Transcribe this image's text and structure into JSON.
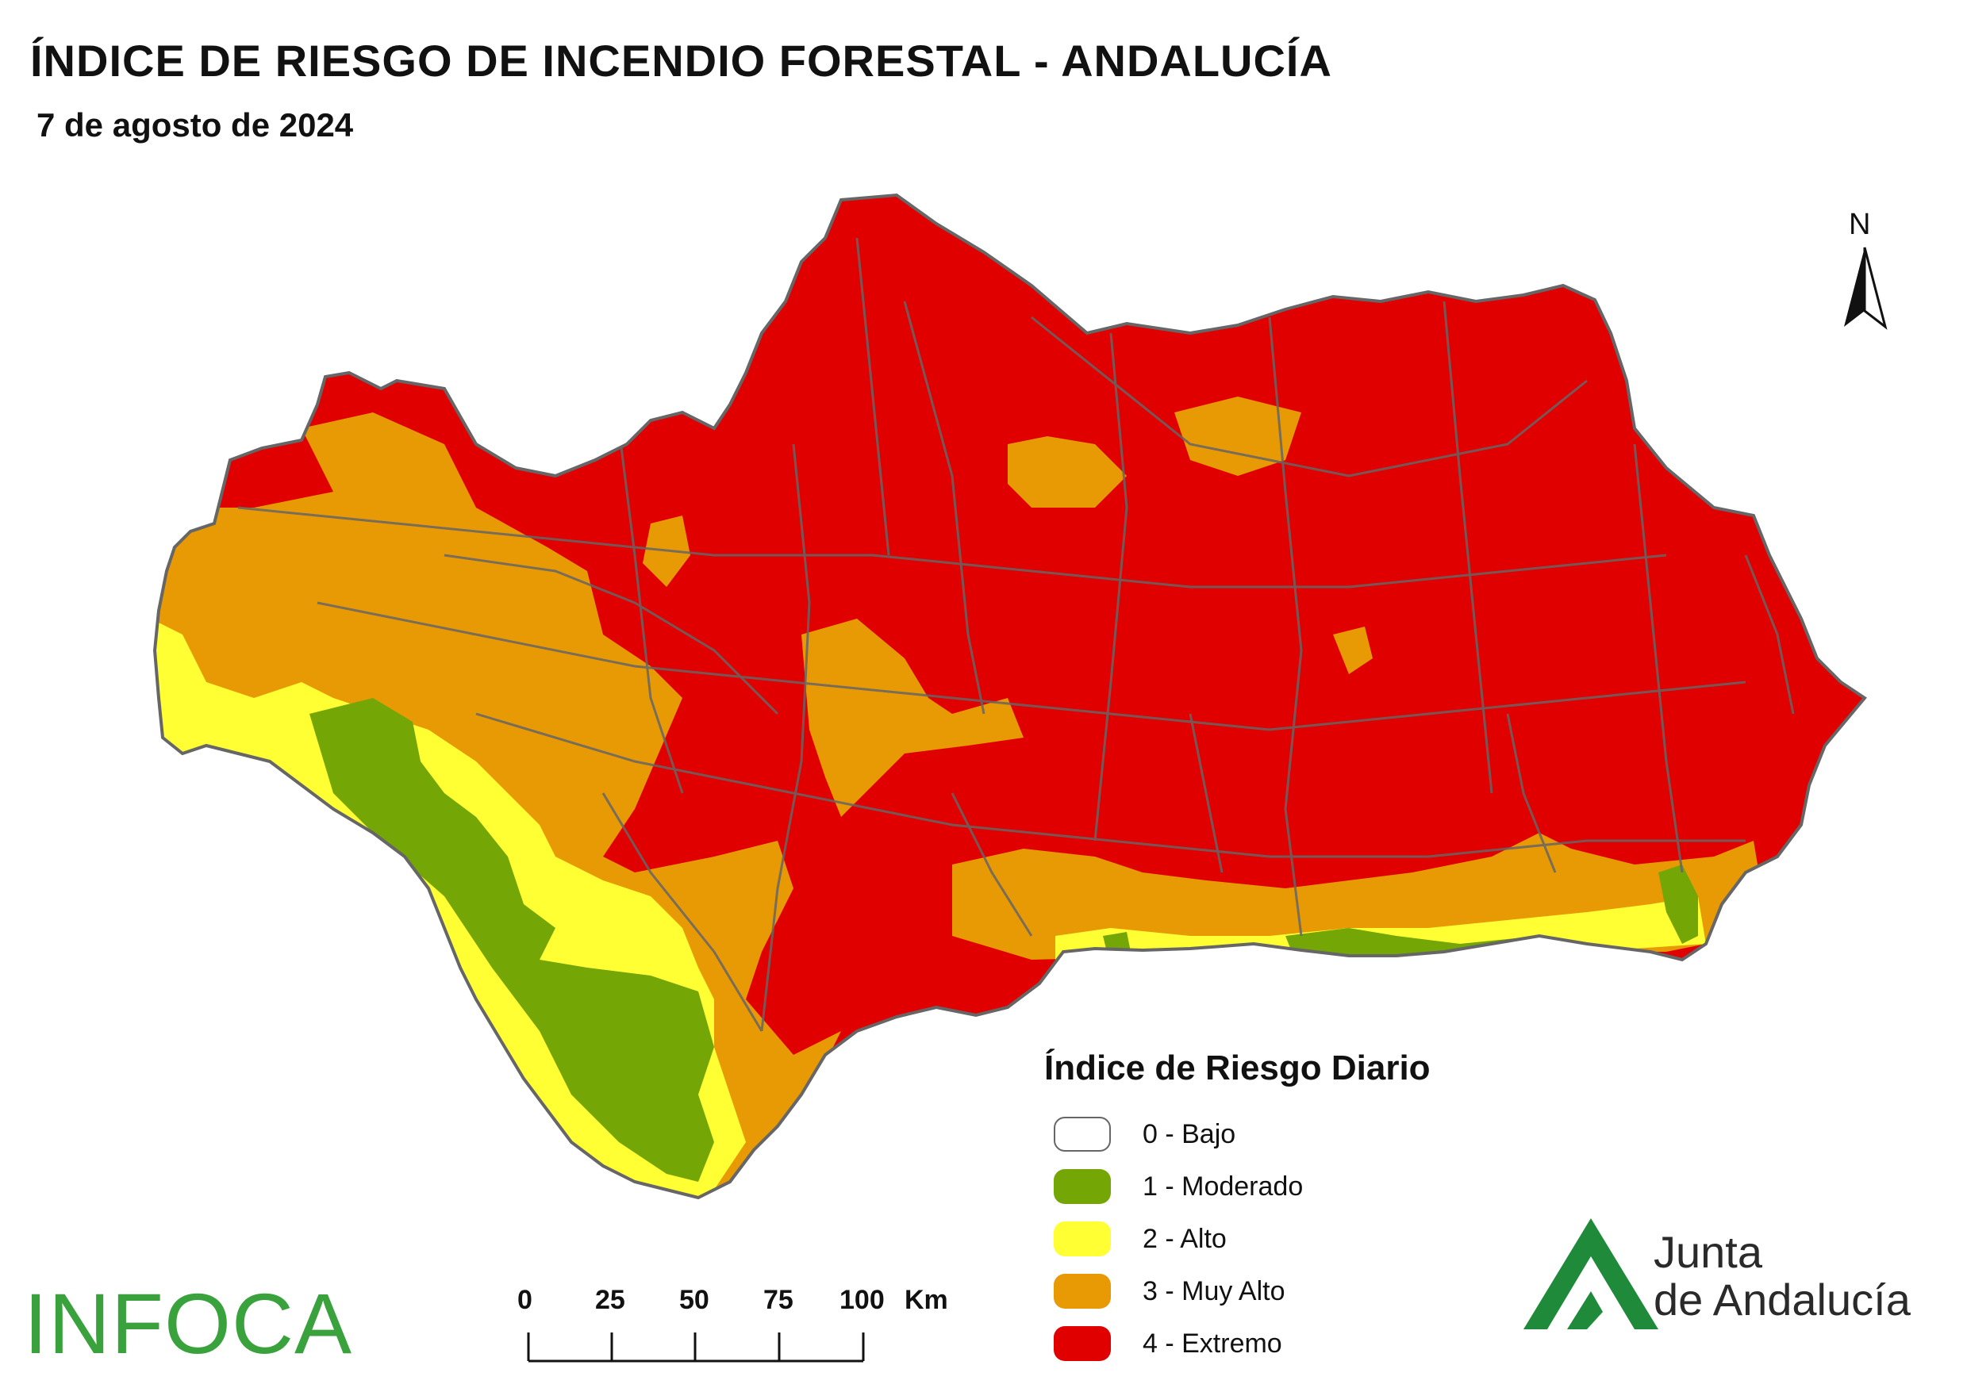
{
  "title": "ÍNDICE DE RIESGO DE INCENDIO FORESTAL - ANDALUCÍA",
  "subtitle": "7 de agosto de 2024",
  "north_label": "N",
  "legend": {
    "title": "Índice de Riesgo Diario",
    "items": [
      {
        "label": "0 - Bajo",
        "color": "#ffffff"
      },
      {
        "label": "1 - Moderado",
        "color": "#74a605"
      },
      {
        "label": "2 - Alto",
        "color": "#ffff33"
      },
      {
        "label": "3 - Muy Alto",
        "color": "#e89a05"
      },
      {
        "label": "4 - Extremo",
        "color": "#e00000"
      }
    ]
  },
  "scale": {
    "ticks": [
      "0",
      "25",
      "50",
      "75",
      "100"
    ],
    "unit": "Km"
  },
  "logos": {
    "infoca": "INFOCA",
    "junta_line1": "Junta",
    "junta_line2": "de Andalucía"
  },
  "colors": {
    "boundary": "#666666",
    "extremo": "#e00000",
    "muy_alto": "#e89a05",
    "alto": "#ffff33",
    "moderado": "#74a605",
    "junta_green": "#1f8a3a"
  }
}
